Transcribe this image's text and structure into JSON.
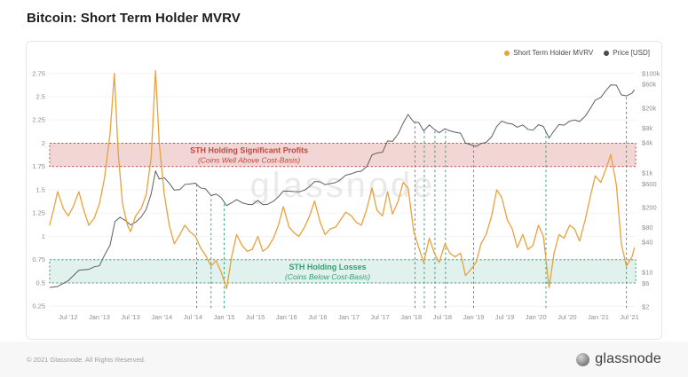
{
  "header": {
    "title": "Bitcoin: Short Term Holder MVRV"
  },
  "legend": [
    {
      "label": "Short Term Holder MVRV",
      "color": "#e9a13b"
    },
    {
      "label": "Price [USD]",
      "color": "#4a4a4a"
    }
  ],
  "watermark": "glassnode",
  "footer": {
    "copyright": "© 2021 Glassnode. All Rights Reserved.",
    "brand": "glassnode"
  },
  "chart_data": {
    "type": "line",
    "title": "Bitcoin: Short Term Holder MVRV",
    "legend_position": "top-right",
    "grid": "horizontal-faint",
    "x_axis": {
      "ticks": [
        {
          "label": "Jul '12",
          "t": 2012.5
        },
        {
          "label": "Jan '13",
          "t": 2013.0
        },
        {
          "label": "Jul '13",
          "t": 2013.5
        },
        {
          "label": "Jan '14",
          "t": 2014.0
        },
        {
          "label": "Jul '14",
          "t": 2014.5
        },
        {
          "label": "Jan '15",
          "t": 2015.0
        },
        {
          "label": "Jul '15",
          "t": 2015.5
        },
        {
          "label": "Jan '16",
          "t": 2016.0
        },
        {
          "label": "Jul '16",
          "t": 2016.5
        },
        {
          "label": "Jan '17",
          "t": 2017.0
        },
        {
          "label": "Jul '17",
          "t": 2017.5
        },
        {
          "label": "Jan '18",
          "t": 2018.0
        },
        {
          "label": "Jul '18",
          "t": 2018.5
        },
        {
          "label": "Jan '19",
          "t": 2019.0
        },
        {
          "label": "Jul '19",
          "t": 2019.5
        },
        {
          "label": "Jan '20",
          "t": 2020.0
        },
        {
          "label": "Jul '20",
          "t": 2020.5
        },
        {
          "label": "Jan '21",
          "t": 2021.0
        },
        {
          "label": "Jul '21",
          "t": 2021.5
        }
      ],
      "range": [
        2012.2,
        2021.6
      ]
    },
    "left_axis": {
      "scale": "linear",
      "range": [
        0.23,
        2.86
      ],
      "ticks": [
        {
          "label": "2.75",
          "v": 2.75
        },
        {
          "label": "2.5",
          "v": 2.5
        },
        {
          "label": "2.25",
          "v": 2.25
        },
        {
          "label": "2",
          "v": 2.0
        },
        {
          "label": "1.75",
          "v": 1.75
        },
        {
          "label": "1.5",
          "v": 1.5
        },
        {
          "label": "1.25",
          "v": 1.25
        },
        {
          "label": "1",
          "v": 1.0
        },
        {
          "label": "0.75",
          "v": 0.75
        },
        {
          "label": "0.5",
          "v": 0.5
        },
        {
          "label": "0.25",
          "v": 0.25
        }
      ]
    },
    "right_axis": {
      "scale": "log",
      "range": [
        2,
        100000
      ],
      "ticks": [
        {
          "label": "$100k",
          "v": 100000
        },
        {
          "label": "$60k",
          "v": 60000
        },
        {
          "label": "$20k",
          "v": 20000
        },
        {
          "label": "$8k",
          "v": 8000
        },
        {
          "label": "$4k",
          "v": 4000
        },
        {
          "label": "$1k",
          "v": 1000
        },
        {
          "label": "$600",
          "v": 600
        },
        {
          "label": "$200",
          "v": 200
        },
        {
          "label": "$80",
          "v": 80
        },
        {
          "label": "$40",
          "v": 40
        },
        {
          "label": "$10",
          "v": 10
        },
        {
          "label": "$6",
          "v": 6
        },
        {
          "label": "$2",
          "v": 2
        }
      ]
    },
    "bands": [
      {
        "name": "sth-profit-band",
        "from": 1.75,
        "to": 2.0,
        "fill": "rgba(196,69,62,0.22)",
        "border": "#c4453e",
        "label": "STH Holding Significant Profits",
        "sublabel": "(Coins Well Above Cost-Basis)",
        "label_color": "#c4453e",
        "label_t": 2015.4
      },
      {
        "name": "sth-loss-band",
        "from": 0.5,
        "to": 0.75,
        "fill": "rgba(45,156,130,0.14)",
        "border": "#33a06f",
        "label": "STH Holding Losses",
        "sublabel": "(Coins Below Cost-Basis)",
        "label_color": "#33a06f",
        "label_t": 2016.66
      }
    ],
    "vlines": {
      "color": "#33a06f",
      "style": "dashed",
      "t": [
        2014.56,
        2014.79,
        2015.0,
        2018.06,
        2018.21,
        2018.38,
        2018.55,
        2019.0,
        2020.16,
        2021.45
      ]
    },
    "series": [
      {
        "name": "Short Term Holder MVRV",
        "color": "#e9a13b",
        "axis": "left",
        "points": [
          [
            2012.2,
            1.12
          ],
          [
            2012.27,
            1.3
          ],
          [
            2012.33,
            1.48
          ],
          [
            2012.42,
            1.3
          ],
          [
            2012.5,
            1.22
          ],
          [
            2012.58,
            1.32
          ],
          [
            2012.67,
            1.48
          ],
          [
            2012.75,
            1.28
          ],
          [
            2012.83,
            1.12
          ],
          [
            2012.92,
            1.2
          ],
          [
            2013.0,
            1.35
          ],
          [
            2013.08,
            1.62
          ],
          [
            2013.17,
            2.1
          ],
          [
            2013.24,
            2.75
          ],
          [
            2013.3,
            1.9
          ],
          [
            2013.37,
            1.35
          ],
          [
            2013.45,
            1.12
          ],
          [
            2013.5,
            1.05
          ],
          [
            2013.58,
            1.22
          ],
          [
            2013.67,
            1.3
          ],
          [
            2013.75,
            1.45
          ],
          [
            2013.83,
            1.85
          ],
          [
            2013.9,
            2.78
          ],
          [
            2013.96,
            2.0
          ],
          [
            2014.04,
            1.45
          ],
          [
            2014.12,
            1.12
          ],
          [
            2014.2,
            0.92
          ],
          [
            2014.29,
            1.02
          ],
          [
            2014.37,
            1.12
          ],
          [
            2014.45,
            1.05
          ],
          [
            2014.54,
            1.0
          ],
          [
            2014.62,
            0.88
          ],
          [
            2014.7,
            0.8
          ],
          [
            2014.79,
            0.68
          ],
          [
            2014.87,
            0.74
          ],
          [
            2014.95,
            0.62
          ],
          [
            2015.04,
            0.44
          ],
          [
            2015.12,
            0.78
          ],
          [
            2015.2,
            1.02
          ],
          [
            2015.29,
            0.9
          ],
          [
            2015.37,
            0.84
          ],
          [
            2015.45,
            0.86
          ],
          [
            2015.54,
            1.0
          ],
          [
            2015.62,
            0.84
          ],
          [
            2015.7,
            0.88
          ],
          [
            2015.79,
            0.98
          ],
          [
            2015.87,
            1.12
          ],
          [
            2015.95,
            1.32
          ],
          [
            2016.04,
            1.1
          ],
          [
            2016.12,
            1.04
          ],
          [
            2016.2,
            1.0
          ],
          [
            2016.29,
            1.1
          ],
          [
            2016.37,
            1.22
          ],
          [
            2016.45,
            1.38
          ],
          [
            2016.54,
            1.15
          ],
          [
            2016.62,
            1.02
          ],
          [
            2016.7,
            1.08
          ],
          [
            2016.79,
            1.1
          ],
          [
            2016.87,
            1.18
          ],
          [
            2016.95,
            1.26
          ],
          [
            2017.04,
            1.22
          ],
          [
            2017.12,
            1.15
          ],
          [
            2017.2,
            1.12
          ],
          [
            2017.29,
            1.3
          ],
          [
            2017.37,
            1.52
          ],
          [
            2017.45,
            1.28
          ],
          [
            2017.54,
            1.22
          ],
          [
            2017.62,
            1.48
          ],
          [
            2017.7,
            1.24
          ],
          [
            2017.79,
            1.38
          ],
          [
            2017.87,
            1.58
          ],
          [
            2017.95,
            1.52
          ],
          [
            2018.04,
            1.05
          ],
          [
            2018.12,
            0.88
          ],
          [
            2018.2,
            0.72
          ],
          [
            2018.29,
            0.98
          ],
          [
            2018.37,
            0.82
          ],
          [
            2018.45,
            0.72
          ],
          [
            2018.54,
            0.92
          ],
          [
            2018.62,
            0.82
          ],
          [
            2018.7,
            0.78
          ],
          [
            2018.79,
            0.82
          ],
          [
            2018.87,
            0.58
          ],
          [
            2018.95,
            0.64
          ],
          [
            2019.04,
            0.72
          ],
          [
            2019.12,
            0.92
          ],
          [
            2019.2,
            1.02
          ],
          [
            2019.29,
            1.22
          ],
          [
            2019.37,
            1.5
          ],
          [
            2019.45,
            1.42
          ],
          [
            2019.54,
            1.18
          ],
          [
            2019.62,
            1.08
          ],
          [
            2019.7,
            0.88
          ],
          [
            2019.79,
            1.02
          ],
          [
            2019.87,
            0.86
          ],
          [
            2019.95,
            0.9
          ],
          [
            2020.04,
            1.12
          ],
          [
            2020.12,
            1.0
          ],
          [
            2020.21,
            0.45
          ],
          [
            2020.29,
            0.82
          ],
          [
            2020.37,
            1.02
          ],
          [
            2020.45,
            0.98
          ],
          [
            2020.54,
            1.12
          ],
          [
            2020.62,
            1.08
          ],
          [
            2020.7,
            0.95
          ],
          [
            2020.79,
            1.18
          ],
          [
            2020.87,
            1.42
          ],
          [
            2020.95,
            1.65
          ],
          [
            2021.04,
            1.58
          ],
          [
            2021.12,
            1.72
          ],
          [
            2021.2,
            1.88
          ],
          [
            2021.29,
            1.55
          ],
          [
            2021.37,
            0.92
          ],
          [
            2021.45,
            0.68
          ],
          [
            2021.54,
            0.78
          ],
          [
            2021.58,
            0.88
          ]
        ]
      },
      {
        "name": "Price [USD]",
        "color": "#5e5e5e",
        "axis": "right",
        "points": [
          [
            2012.2,
            5
          ],
          [
            2012.33,
            5.2
          ],
          [
            2012.5,
            6.8
          ],
          [
            2012.67,
            11
          ],
          [
            2012.83,
            11.5
          ],
          [
            2012.92,
            13
          ],
          [
            2013.0,
            13.5
          ],
          [
            2013.08,
            22
          ],
          [
            2013.17,
            35
          ],
          [
            2013.25,
            105
          ],
          [
            2013.33,
            128
          ],
          [
            2013.42,
            110
          ],
          [
            2013.5,
            90
          ],
          [
            2013.58,
            102
          ],
          [
            2013.67,
            130
          ],
          [
            2013.75,
            185
          ],
          [
            2013.83,
            380
          ],
          [
            2013.9,
            1100
          ],
          [
            2013.96,
            750
          ],
          [
            2014.04,
            800
          ],
          [
            2014.12,
            620
          ],
          [
            2014.2,
            450
          ],
          [
            2014.29,
            460
          ],
          [
            2014.37,
            585
          ],
          [
            2014.45,
            600
          ],
          [
            2014.54,
            620
          ],
          [
            2014.62,
            500
          ],
          [
            2014.7,
            480
          ],
          [
            2014.79,
            350
          ],
          [
            2014.87,
            375
          ],
          [
            2014.95,
            320
          ],
          [
            2015.04,
            220
          ],
          [
            2015.12,
            250
          ],
          [
            2015.2,
            290
          ],
          [
            2015.29,
            250
          ],
          [
            2015.37,
            235
          ],
          [
            2015.45,
            230
          ],
          [
            2015.54,
            280
          ],
          [
            2015.62,
            230
          ],
          [
            2015.7,
            235
          ],
          [
            2015.79,
            270
          ],
          [
            2015.87,
            330
          ],
          [
            2015.95,
            430
          ],
          [
            2016.04,
            430
          ],
          [
            2016.12,
            420
          ],
          [
            2016.2,
            415
          ],
          [
            2016.29,
            450
          ],
          [
            2016.37,
            530
          ],
          [
            2016.45,
            670
          ],
          [
            2016.54,
            660
          ],
          [
            2016.62,
            580
          ],
          [
            2016.7,
            610
          ],
          [
            2016.79,
            640
          ],
          [
            2016.87,
            740
          ],
          [
            2016.95,
            900
          ],
          [
            2017.04,
            960
          ],
          [
            2017.12,
            1050
          ],
          [
            2017.2,
            1080
          ],
          [
            2017.29,
            1350
          ],
          [
            2017.37,
            2300
          ],
          [
            2017.45,
            2500
          ],
          [
            2017.54,
            2600
          ],
          [
            2017.62,
            4400
          ],
          [
            2017.7,
            4300
          ],
          [
            2017.79,
            6100
          ],
          [
            2017.87,
            10000
          ],
          [
            2017.95,
            15000
          ],
          [
            2018.04,
            10500
          ],
          [
            2018.12,
            10300
          ],
          [
            2018.2,
            7000
          ],
          [
            2018.29,
            9200
          ],
          [
            2018.37,
            7500
          ],
          [
            2018.45,
            6400
          ],
          [
            2018.54,
            7700
          ],
          [
            2018.62,
            7000
          ],
          [
            2018.7,
            6600
          ],
          [
            2018.79,
            6300
          ],
          [
            2018.87,
            4000
          ],
          [
            2018.95,
            3700
          ],
          [
            2019.04,
            3400
          ],
          [
            2019.12,
            3900
          ],
          [
            2019.2,
            4100
          ],
          [
            2019.29,
            5300
          ],
          [
            2019.37,
            8600
          ],
          [
            2019.45,
            11000
          ],
          [
            2019.54,
            10000
          ],
          [
            2019.62,
            9600
          ],
          [
            2019.7,
            8300
          ],
          [
            2019.79,
            9200
          ],
          [
            2019.87,
            7500
          ],
          [
            2019.95,
            7200
          ],
          [
            2020.04,
            9300
          ],
          [
            2020.12,
            8600
          ],
          [
            2020.21,
            5000
          ],
          [
            2020.29,
            7000
          ],
          [
            2020.37,
            9400
          ],
          [
            2020.45,
            9100
          ],
          [
            2020.54,
            11000
          ],
          [
            2020.62,
            11600
          ],
          [
            2020.7,
            10800
          ],
          [
            2020.79,
            13800
          ],
          [
            2020.87,
            19600
          ],
          [
            2020.95,
            29000
          ],
          [
            2021.04,
            33000
          ],
          [
            2021.12,
            45000
          ],
          [
            2021.2,
            58800
          ],
          [
            2021.29,
            58000
          ],
          [
            2021.37,
            37000
          ],
          [
            2021.45,
            35500
          ],
          [
            2021.54,
            40000
          ],
          [
            2021.58,
            47000
          ]
        ]
      }
    ]
  }
}
